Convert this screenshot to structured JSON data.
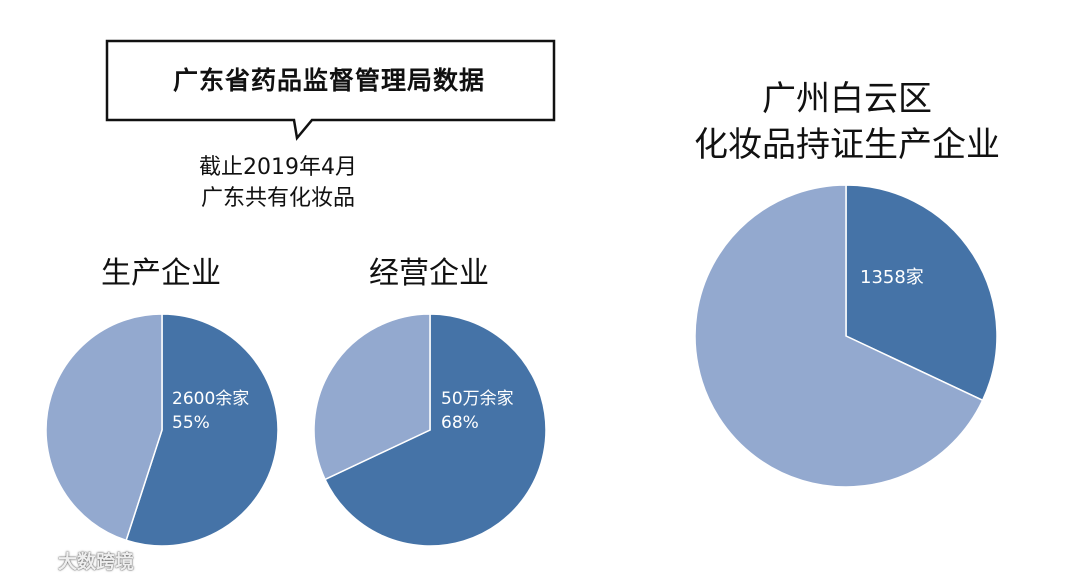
{
  "callout": {
    "text": "广东省药品监督管理局数据"
  },
  "subtitle": {
    "line1": "截止2019年4月",
    "line2": "广东共有化妆品"
  },
  "colors": {
    "dark": "#4573A7",
    "light": "#93A9CF",
    "stroke": "#FFFFFF"
  },
  "chart_data": [
    {
      "type": "pie",
      "title": "生产企业",
      "slices": [
        {
          "label": "2600余家",
          "percent_label": "55%",
          "value": 55,
          "color": "#4573A7"
        },
        {
          "label": "",
          "percent_label": "",
          "value": 45,
          "color": "#93A9CF"
        }
      ]
    },
    {
      "type": "pie",
      "title": "经营企业",
      "slices": [
        {
          "label": "50万余家",
          "percent_label": "68%",
          "value": 68,
          "color": "#4573A7"
        },
        {
          "label": "",
          "percent_label": "",
          "value": 32,
          "color": "#93A9CF"
        }
      ]
    },
    {
      "type": "pie",
      "title": "广州白云区",
      "title_line2": "化妆品持证生产企业",
      "slices": [
        {
          "label": "1358家",
          "percent_label": "",
          "value": 32,
          "color": "#4573A7"
        },
        {
          "label": "",
          "percent_label": "",
          "value": 68,
          "color": "#93A9CF"
        }
      ]
    }
  ],
  "watermark": {
    "text": "大数跨境"
  }
}
